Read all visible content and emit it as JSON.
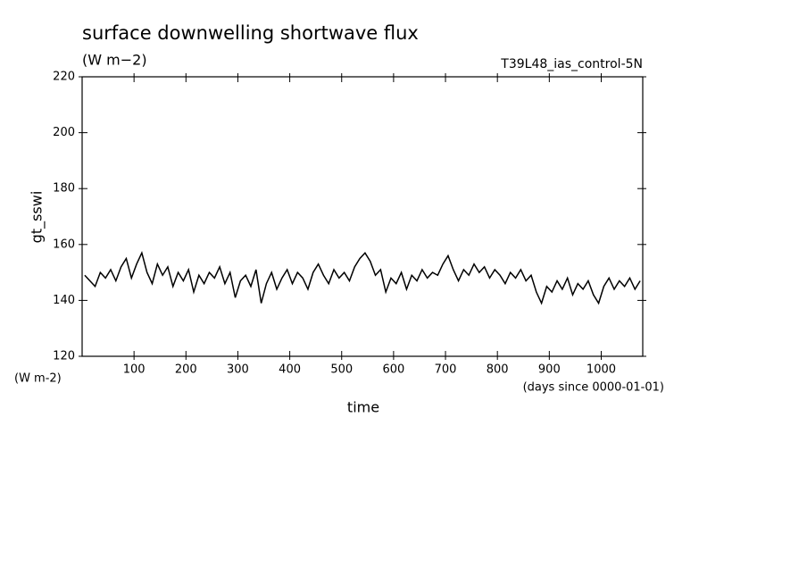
{
  "chart_data": {
    "type": "line",
    "title": "surface downwelling shortwave flux",
    "subtitle": "(W m−2)",
    "annotation": "T39L48_ias_control-5N",
    "y_label": "gt_sswi",
    "y_units": "(W m-2)",
    "x_label": "time",
    "x_units": "(days since 0000-01-01)",
    "x": [
      5,
      15,
      25,
      35,
      45,
      55,
      65,
      75,
      85,
      95,
      105,
      115,
      125,
      135,
      145,
      155,
      165,
      175,
      185,
      195,
      205,
      215,
      225,
      235,
      245,
      255,
      265,
      275,
      285,
      295,
      305,
      315,
      325,
      335,
      345,
      355,
      365,
      375,
      385,
      395,
      405,
      415,
      425,
      435,
      445,
      455,
      465,
      475,
      485,
      495,
      505,
      515,
      525,
      535,
      545,
      555,
      565,
      575,
      585,
      595,
      605,
      615,
      625,
      635,
      645,
      655,
      665,
      675,
      685,
      695,
      705,
      715,
      725,
      735,
      745,
      755,
      765,
      775,
      785,
      795,
      805,
      815,
      825,
      835,
      845,
      855,
      865,
      875,
      885,
      895,
      905,
      915,
      925,
      935,
      945,
      955,
      965,
      975,
      985,
      995,
      1005,
      1015,
      1025,
      1035,
      1045,
      1055,
      1065,
      1075
    ],
    "series": [
      {
        "name": "gt_sswi",
        "color": "#000000",
        "values": [
          149,
          147,
          145,
          150,
          148,
          151,
          147,
          152,
          155,
          148,
          153,
          157,
          150,
          146,
          153,
          149,
          152,
          145,
          150,
          147,
          151,
          143,
          149,
          146,
          150,
          148,
          152,
          146,
          150,
          141,
          147,
          149,
          145,
          151,
          139,
          146,
          150,
          144,
          148,
          151,
          146,
          150,
          148,
          144,
          150,
          153,
          149,
          146,
          151,
          148,
          150,
          147,
          152,
          155,
          157,
          154,
          149,
          151,
          143,
          148,
          146,
          150,
          144,
          149,
          147,
          151,
          148,
          150,
          149,
          153,
          156,
          151,
          147,
          151,
          149,
          153,
          150,
          152,
          148,
          151,
          149,
          146,
          150,
          148,
          151,
          147,
          149,
          143,
          139,
          145,
          143,
          147,
          144,
          148,
          142,
          146,
          144,
          147,
          142,
          139,
          145,
          148,
          144,
          147,
          145,
          148,
          144,
          147
        ]
      }
    ],
    "xlim": [
      0,
      1080
    ],
    "xticks": [
      100,
      200,
      300,
      400,
      500,
      600,
      700,
      800,
      900,
      1000
    ],
    "ylim": [
      120,
      220
    ],
    "yticks": [
      120,
      140,
      160,
      180,
      200,
      220
    ]
  }
}
